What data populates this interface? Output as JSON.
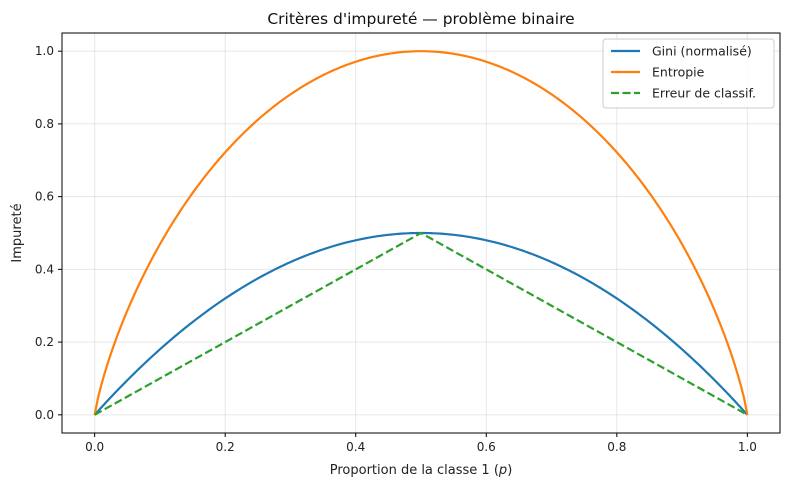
{
  "chart_data": {
    "type": "line",
    "title": "Critères d'impureté — problème binaire",
    "xlabel_prefix": "Proportion de la classe 1 (",
    "xlabel_var": "p",
    "xlabel_suffix": ")",
    "ylabel": "Impureté",
    "xlim": [
      -0.05,
      1.05
    ],
    "ylim": [
      -0.05,
      1.05
    ],
    "xticks": [
      0.0,
      0.2,
      0.4,
      0.6,
      0.8,
      1.0
    ],
    "xtick_labels": [
      "0.0",
      "0.2",
      "0.4",
      "0.6",
      "0.8",
      "1.0"
    ],
    "yticks": [
      0.0,
      0.2,
      0.4,
      0.6,
      0.8,
      1.0
    ],
    "ytick_labels": [
      "0.0",
      "0.2",
      "0.4",
      "0.6",
      "0.8",
      "1.0"
    ],
    "grid": true,
    "legend_position": "top-right",
    "x": [
      0.0,
      0.05,
      0.1,
      0.15,
      0.2,
      0.25,
      0.3,
      0.35,
      0.4,
      0.45,
      0.5,
      0.55,
      0.6,
      0.65,
      0.7,
      0.75,
      0.8,
      0.85,
      0.9,
      0.95,
      1.0
    ],
    "series": [
      {
        "name": "Gini (normalisé)",
        "color": "#1f77b4",
        "dash": "solid",
        "values": [
          0.0,
          0.095,
          0.18,
          0.255,
          0.32,
          0.375,
          0.42,
          0.455,
          0.48,
          0.495,
          0.5,
          0.495,
          0.48,
          0.455,
          0.42,
          0.375,
          0.32,
          0.255,
          0.18,
          0.095,
          0.0
        ]
      },
      {
        "name": "Entropie",
        "color": "#ff7f0e",
        "dash": "solid",
        "values": [
          0.0,
          0.286,
          0.469,
          0.61,
          0.722,
          0.811,
          0.881,
          0.934,
          0.971,
          0.993,
          1.0,
          0.993,
          0.971,
          0.934,
          0.881,
          0.811,
          0.722,
          0.61,
          0.469,
          0.286,
          0.0
        ]
      },
      {
        "name": "Erreur de classif.",
        "color": "#2ca02c",
        "dash": "dashed",
        "values": [
          0.0,
          0.05,
          0.1,
          0.15,
          0.2,
          0.25,
          0.3,
          0.35,
          0.4,
          0.45,
          0.5,
          0.45,
          0.4,
          0.35,
          0.3,
          0.25,
          0.2,
          0.15,
          0.1,
          0.05,
          0.0
        ]
      }
    ]
  }
}
